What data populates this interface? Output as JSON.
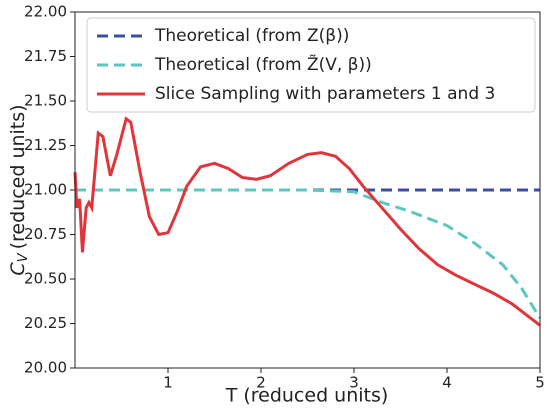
{
  "chart_data": {
    "type": "line",
    "xlabel": "T (reduced units)",
    "ylabel": {
      "symbol": "C",
      "subscript": "V",
      "text": "(reduced units)"
    },
    "xlim": [
      0,
      5
    ],
    "xticks": [
      1,
      2,
      3,
      4,
      5
    ],
    "ylim": [
      20,
      22
    ],
    "yticks": [
      {
        "value": 20,
        "label": "20.00"
      },
      20.25,
      {
        "value": 20.5,
        "label": "20.50"
      },
      20.75,
      {
        "value": 21,
        "label": "21.00"
      },
      21.25,
      {
        "value": 21.5,
        "label": "21.50"
      },
      21.75,
      {
        "value": 22,
        "label": "22.00"
      }
    ],
    "legend": "upper right",
    "series": [
      {
        "name": "Theoretical (from Z(β))",
        "color": "#3b4fa0",
        "linestyle": "dashed",
        "x": [
          0,
          5
        ],
        "values": [
          21,
          21
        ]
      },
      {
        "name": "Theoretical (from Z̃(V, β))",
        "color": "#5cc7be",
        "linestyle": "dashed",
        "x": [
          0,
          2.5,
          3,
          3.3,
          3.6,
          4,
          4.3,
          4.6,
          4.8,
          5
        ],
        "values": [
          21,
          21,
          20.99,
          20.93,
          20.88,
          20.8,
          20.7,
          20.58,
          20.45,
          20.28
        ]
      },
      {
        "name": "Slice Sampling with parameters 1 and 3",
        "color": "#e0353a",
        "linestyle": "solid",
        "x": [
          0,
          0.02,
          0.05,
          0.08,
          0.12,
          0.15,
          0.18,
          0.25,
          0.3,
          0.38,
          0.45,
          0.55,
          0.6,
          0.7,
          0.8,
          0.9,
          1,
          1.1,
          1.2,
          1.35,
          1.5,
          1.65,
          1.8,
          1.95,
          2.1,
          2.3,
          2.5,
          2.65,
          2.8,
          2.95,
          3.1,
          3.3,
          3.5,
          3.7,
          3.9,
          4.1,
          4.3,
          4.5,
          4.7,
          4.9,
          5
        ],
        "values": [
          21.1,
          20.9,
          20.95,
          20.65,
          20.9,
          20.93,
          20.9,
          21.32,
          21.3,
          21.08,
          21.2,
          21.4,
          21.38,
          21.1,
          20.85,
          20.75,
          20.76,
          20.88,
          21.02,
          21.13,
          21.15,
          21.12,
          21.07,
          21.06,
          21.08,
          21.15,
          21.2,
          21.21,
          21.19,
          21.12,
          21.02,
          20.9,
          20.78,
          20.67,
          20.58,
          20.52,
          20.47,
          20.42,
          20.36,
          20.28,
          20.24
        ]
      }
    ]
  }
}
